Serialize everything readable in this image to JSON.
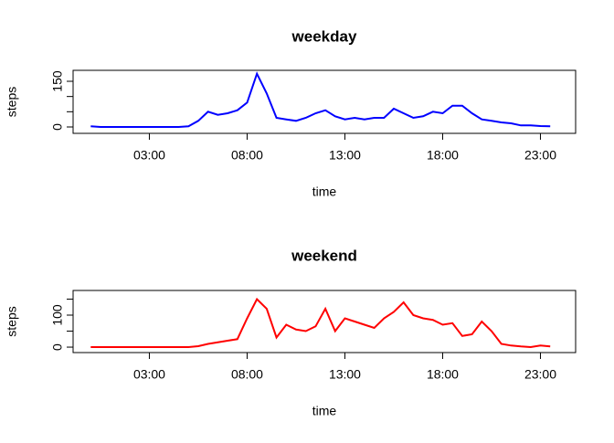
{
  "chart_data": [
    {
      "type": "line",
      "title": "weekday",
      "xlabel": "time",
      "ylabel": "steps",
      "x": [
        0,
        0.5,
        1,
        1.5,
        2,
        2.5,
        3,
        3.5,
        4,
        4.5,
        5,
        5.5,
        6,
        6.5,
        7,
        7.5,
        8,
        8.5,
        9,
        9.5,
        10,
        10.5,
        11,
        11.5,
        12,
        12.5,
        13,
        13.5,
        14,
        14.5,
        15,
        15.5,
        16,
        16.5,
        17,
        17.5,
        18,
        18.5,
        19,
        19.5,
        20,
        20.5,
        21,
        21.5,
        22,
        22.5,
        23,
        23.5
      ],
      "series": [
        {
          "name": "weekday",
          "color": "#0000ff",
          "values": [
            2,
            0,
            0,
            0,
            0,
            0,
            0,
            0,
            0,
            0,
            2,
            20,
            50,
            40,
            45,
            55,
            80,
            175,
            110,
            30,
            25,
            20,
            30,
            45,
            55,
            35,
            25,
            30,
            25,
            30,
            30,
            60,
            45,
            30,
            35,
            50,
            45,
            70,
            70,
            45,
            25,
            20,
            15,
            12,
            5,
            5,
            3,
            2
          ]
        }
      ],
      "xlim": [
        -0.9,
        24.8
      ],
      "xticks": [
        {
          "value": 3,
          "label": "03:00"
        },
        {
          "value": 8,
          "label": "08:00"
        },
        {
          "value": 13,
          "label": "13:00"
        },
        {
          "value": 18,
          "label": "18:00"
        },
        {
          "value": 23,
          "label": "23:00"
        }
      ],
      "ylim": [
        -21,
        186
      ],
      "yticks": [
        0,
        150
      ],
      "yticks_minor": [
        50,
        100
      ]
    },
    {
      "type": "line",
      "title": "weekend",
      "xlabel": "time",
      "ylabel": "steps",
      "x": [
        0,
        0.5,
        1,
        1.5,
        2,
        2.5,
        3,
        3.5,
        4,
        4.5,
        5,
        5.5,
        6,
        6.5,
        7,
        7.5,
        8,
        8.5,
        9,
        9.5,
        10,
        10.5,
        11,
        11.5,
        12,
        12.5,
        13,
        13.5,
        14,
        14.5,
        15,
        15.5,
        16,
        16.5,
        17,
        17.5,
        18,
        18.5,
        19,
        19.5,
        20,
        20.5,
        21,
        21.5,
        22,
        22.5,
        23,
        23.5
      ],
      "series": [
        {
          "name": "weekend",
          "color": "#ff0000",
          "values": [
            0,
            0,
            0,
            0,
            0,
            0,
            0,
            0,
            0,
            0,
            0,
            3,
            10,
            15,
            20,
            25,
            90,
            150,
            120,
            30,
            70,
            55,
            50,
            65,
            120,
            50,
            90,
            80,
            70,
            60,
            90,
            110,
            140,
            100,
            90,
            85,
            70,
            75,
            35,
            40,
            80,
            50,
            10,
            5,
            2,
            0,
            5,
            2
          ]
        }
      ],
      "xlim": [
        -0.9,
        24.8
      ],
      "xticks": [
        {
          "value": 3,
          "label": "03:00"
        },
        {
          "value": 8,
          "label": "08:00"
        },
        {
          "value": 13,
          "label": "13:00"
        },
        {
          "value": 18,
          "label": "18:00"
        },
        {
          "value": 23,
          "label": "23:00"
        }
      ],
      "ylim": [
        -17,
        177
      ],
      "yticks": [
        0,
        100
      ],
      "yticks_minor": [
        50,
        150
      ]
    }
  ]
}
